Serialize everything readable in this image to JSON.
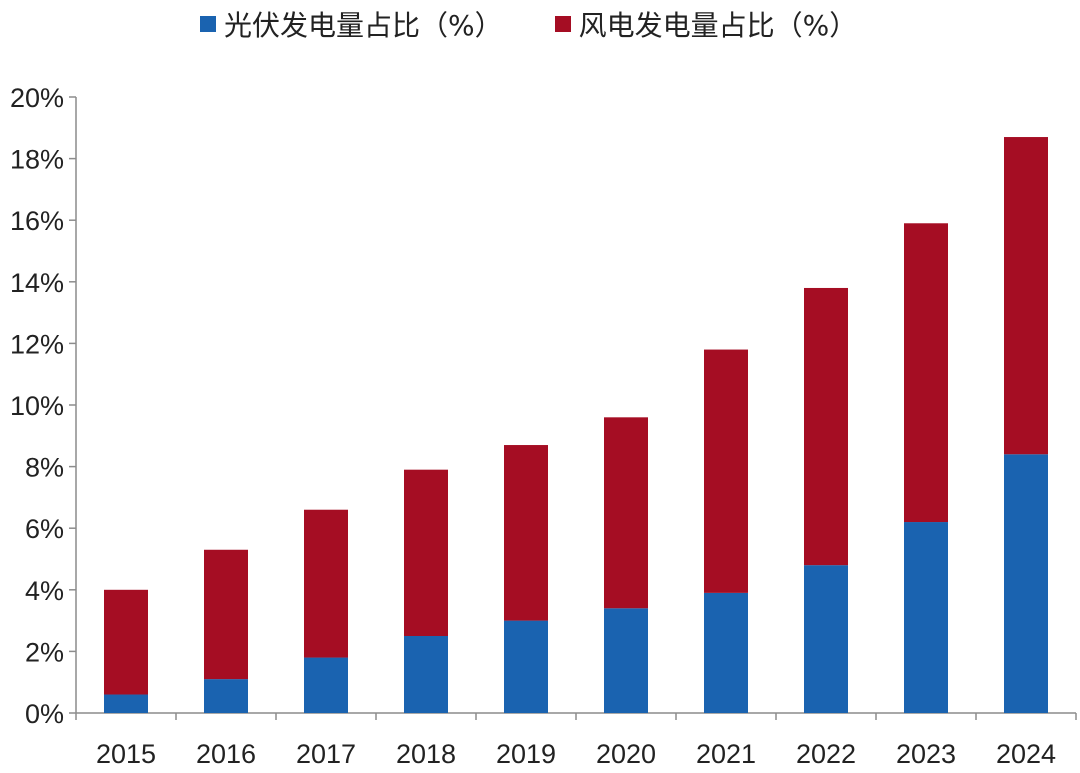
{
  "colors": {
    "solar": "#1a63b0",
    "wind": "#a50d23",
    "axis": "#8c8c8c"
  },
  "chart_data": {
    "type": "bar",
    "stacked": true,
    "categories": [
      "2015",
      "2016",
      "2017",
      "2018",
      "2019",
      "2020",
      "2021",
      "2022",
      "2023",
      "2024"
    ],
    "series": [
      {
        "name": "光伏发电量占比（%）",
        "values": [
          0.6,
          1.1,
          1.8,
          2.5,
          3.0,
          3.4,
          3.9,
          4.8,
          6.2,
          8.4
        ]
      },
      {
        "name": "风电发电量占比（%）",
        "values": [
          3.4,
          4.2,
          4.8,
          5.4,
          5.7,
          6.2,
          7.9,
          9.0,
          9.7,
          10.3
        ]
      }
    ],
    "ylim": [
      0,
      20
    ],
    "yticks": [
      "0%",
      "2%",
      "4%",
      "6%",
      "8%",
      "10%",
      "12%",
      "14%",
      "16%",
      "18%",
      "20%"
    ],
    "grid": false,
    "legend_position": "top"
  }
}
